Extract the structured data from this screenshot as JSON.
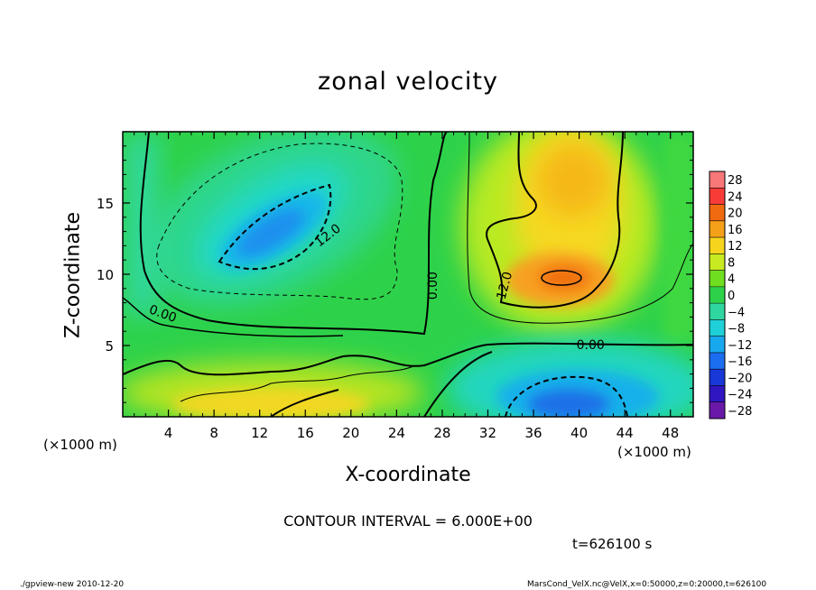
{
  "title": "zonal velocity",
  "xlabel": "X-coordinate",
  "ylabel": "Z-coordinate",
  "x_unit_left": "(×1000 m)",
  "x_unit_right": "(×1000 m)",
  "contour_interval_text": "CONTOUR INTERVAL = 6.000E+00",
  "time_text": "t=626100 s",
  "footer_left": "./gpview-new  2010-12-20",
  "footer_right": "MarsCond_VelX.nc@VelX,x=0:50000,z=0:20000,t=626100",
  "chart_data": {
    "type": "heatmap",
    "title": "zonal velocity",
    "xlabel": "X-coordinate",
    "ylabel": "Z-coordinate",
    "xlim": [
      0,
      50
    ],
    "ylim": [
      0,
      20
    ],
    "xticks": [
      4,
      8,
      12,
      16,
      20,
      24,
      28,
      32,
      36,
      40,
      44,
      48
    ],
    "yticks": [
      5,
      10,
      15
    ],
    "colorbar_levels": [
      28,
      24,
      20,
      16,
      12,
      8,
      4,
      0,
      -4,
      -8,
      -12,
      -16,
      -20,
      -24,
      -28
    ],
    "contour_labels": [
      {
        "text": "12.0",
        "x": 18,
        "z": 12.7
      },
      {
        "text": "0.00",
        "x": 27.2,
        "z": 9.2
      },
      {
        "text": "12.0",
        "x": 33.5,
        "z": 9.2
      },
      {
        "text": "0.00",
        "x": 41,
        "z": 5.0
      },
      {
        "text": "0.00",
        "x": 3.5,
        "z": 7.2
      }
    ],
    "features": [
      {
        "type": "min",
        "x": 14,
        "z": 12.5,
        "value": -14
      },
      {
        "type": "max",
        "x": 38.5,
        "z": 10,
        "value": 20
      },
      {
        "type": "min",
        "x": 38.5,
        "z": 1.5,
        "value": -16
      },
      {
        "type": "max",
        "x": 39,
        "z": 16.5,
        "value": 14
      },
      {
        "type": "max",
        "x": 14,
        "z": 1.5,
        "value": 12
      }
    ]
  }
}
